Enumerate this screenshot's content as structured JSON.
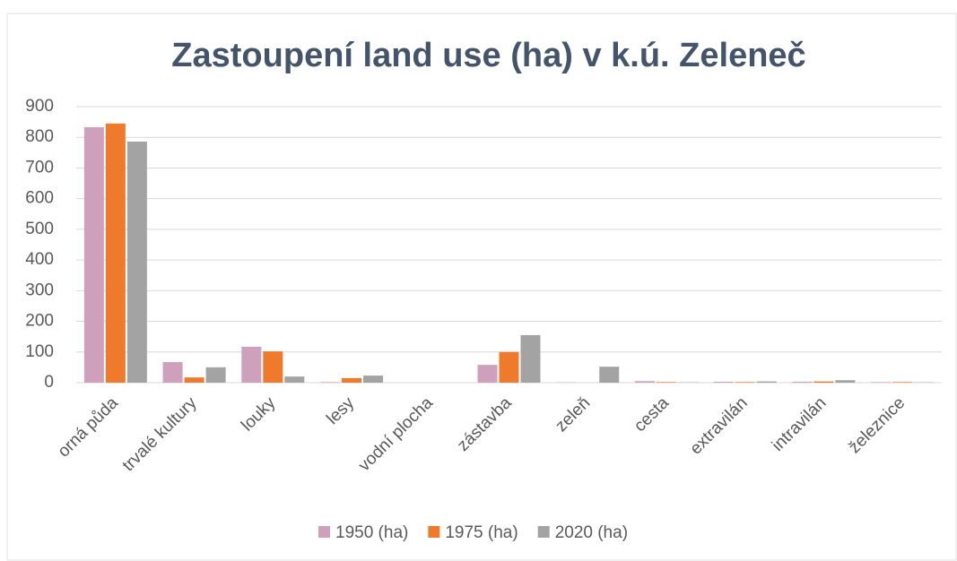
{
  "chart_data": {
    "type": "bar",
    "title": "Zastoupení land use (ha) v k.ú. Zeleneč",
    "categories": [
      "orná půda",
      "trvalé kultury",
      "louky",
      "lesy",
      "vodní plocha",
      "zástavba",
      "zeleň",
      "cesta",
      "extravilán",
      "intravilán",
      "železnice"
    ],
    "series": [
      {
        "name": "1950 (ha)",
        "color": "#cfa0bb",
        "values": [
          833,
          67,
          117,
          2,
          0,
          58,
          1,
          5,
          3,
          3,
          2
        ]
      },
      {
        "name": "1975 (ha)",
        "color": "#f07a2c",
        "values": [
          845,
          17,
          102,
          15,
          0,
          100,
          0,
          2,
          2,
          4,
          2
        ]
      },
      {
        "name": "2020 (ha)",
        "color": "#a3a3a3",
        "values": [
          786,
          50,
          20,
          23,
          0,
          155,
          52,
          1,
          4,
          8,
          1
        ]
      }
    ],
    "ylim": [
      0,
      900
    ],
    "yticks": [
      0,
      100,
      200,
      300,
      400,
      500,
      600,
      700,
      800,
      900
    ],
    "grid": true,
    "legend": "bottom"
  }
}
